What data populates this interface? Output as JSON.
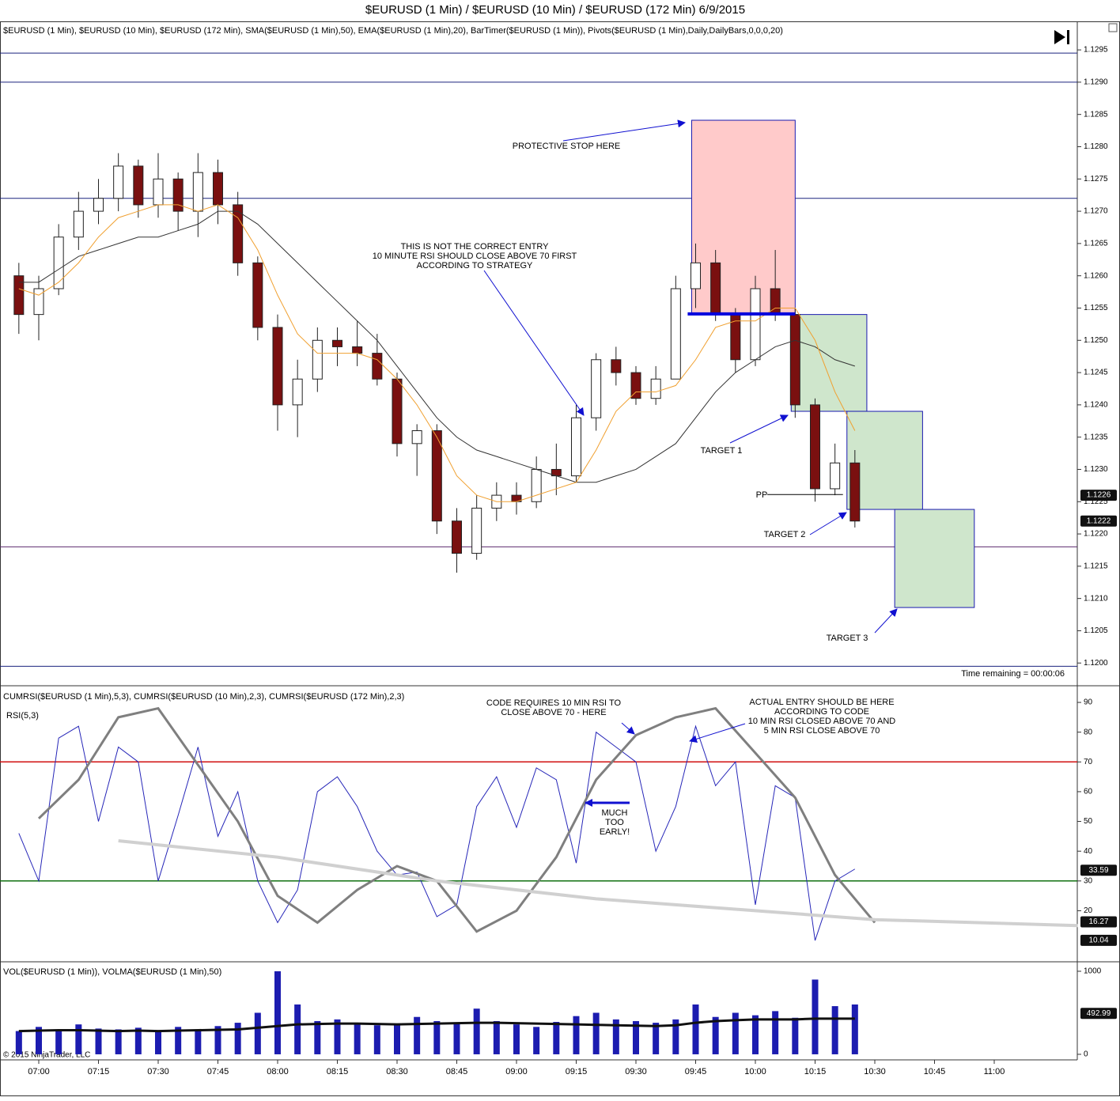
{
  "title": "$EURUSD (1 Min) / $EURUSD (10 Min) / $EURUSD (172 Min)  6/9/2015",
  "copyright": "© 2015 NinjaTrader, LLC",
  "xticks": [
    "07:00",
    "07:15",
    "07:30",
    "07:45",
    "08:00",
    "08:15",
    "08:30",
    "08:45",
    "09:00",
    "09:15",
    "09:30",
    "09:45",
    "10:00",
    "10:15",
    "10:30",
    "10:45",
    "11:00"
  ],
  "chart_data": [
    {
      "type": "candlestick",
      "label": "$EURUSD (1 Min), $EURUSD (10 Min), $EURUSD (172 Min), SMA($EURUSD (1 Min),50), EMA($EURUSD (1 Min),20), BarTimer($EURUSD (1 Min)), Pivots($EURUSD (1 Min),Daily,DailyBars,0,0,0,20)",
      "x": [
        "06:55",
        "07:00",
        "07:05",
        "07:10",
        "07:15",
        "07:20",
        "07:25",
        "07:30",
        "07:35",
        "07:40",
        "07:45",
        "07:50",
        "07:55",
        "08:00",
        "08:05",
        "08:10",
        "08:15",
        "08:20",
        "08:25",
        "08:30",
        "08:35",
        "08:40",
        "08:45",
        "08:50",
        "08:55",
        "09:00",
        "09:05",
        "09:10",
        "09:15",
        "09:20",
        "09:25",
        "09:30",
        "09:35",
        "09:40",
        "09:45",
        "09:50",
        "09:55",
        "10:00",
        "10:05",
        "10:10",
        "10:15",
        "10:20",
        "10:25"
      ],
      "open": [
        1.126,
        1.1254,
        1.1258,
        1.1266,
        1.127,
        1.1272,
        1.1277,
        1.1271,
        1.1275,
        1.127,
        1.1276,
        1.1271,
        1.1262,
        1.1252,
        1.124,
        1.1244,
        1.125,
        1.1249,
        1.1248,
        1.1244,
        1.1234,
        1.1236,
        1.1222,
        1.1217,
        1.1224,
        1.1226,
        1.1225,
        1.123,
        1.1229,
        1.1238,
        1.1247,
        1.1245,
        1.1241,
        1.1244,
        1.1258,
        1.1262,
        1.1254,
        1.1247,
        1.1258,
        1.1254,
        1.124,
        1.1227,
        1.1231
      ],
      "high": [
        1.1262,
        1.126,
        1.1268,
        1.1273,
        1.1275,
        1.1279,
        1.1278,
        1.1279,
        1.1276,
        1.1279,
        1.1278,
        1.1273,
        1.1263,
        1.1254,
        1.1247,
        1.1252,
        1.1252,
        1.1253,
        1.1251,
        1.1245,
        1.1237,
        1.1237,
        1.1224,
        1.1226,
        1.1228,
        1.1228,
        1.1232,
        1.1234,
        1.124,
        1.1248,
        1.1249,
        1.1246,
        1.1246,
        1.126,
        1.1265,
        1.1264,
        1.1255,
        1.126,
        1.1264,
        1.1255,
        1.1241,
        1.1234,
        1.1233
      ],
      "low": [
        1.1251,
        1.125,
        1.1257,
        1.1264,
        1.1268,
        1.127,
        1.1269,
        1.1269,
        1.1267,
        1.1266,
        1.1268,
        1.126,
        1.125,
        1.1236,
        1.1235,
        1.1242,
        1.1246,
        1.1246,
        1.1243,
        1.1232,
        1.1229,
        1.122,
        1.1214,
        1.1216,
        1.1222,
        1.1223,
        1.1224,
        1.1226,
        1.1228,
        1.1236,
        1.1243,
        1.124,
        1.124,
        1.1244,
        1.1255,
        1.1253,
        1.1245,
        1.1246,
        1.1253,
        1.1238,
        1.1225,
        1.1226,
        1.1221
      ],
      "close": [
        1.1254,
        1.1258,
        1.1266,
        1.127,
        1.1272,
        1.1277,
        1.1271,
        1.1275,
        1.127,
        1.1276,
        1.1271,
        1.1262,
        1.1252,
        1.124,
        1.1244,
        1.125,
        1.1249,
        1.1248,
        1.1244,
        1.1234,
        1.1236,
        1.1222,
        1.1217,
        1.1224,
        1.1226,
        1.1225,
        1.123,
        1.1229,
        1.1238,
        1.1247,
        1.1245,
        1.1241,
        1.1244,
        1.1258,
        1.1262,
        1.1254,
        1.1247,
        1.1258,
        1.1254,
        1.124,
        1.1227,
        1.1231,
        1.1222
      ],
      "up_color": "#ffffff",
      "down_color": "#7a1010",
      "series": [
        {
          "color": "#333333",
          "values": [
            1.1259,
            1.1259,
            1.1261,
            1.1263,
            1.1264,
            1.1265,
            1.1266,
            1.1266,
            1.1267,
            1.1268,
            1.127,
            1.127,
            1.1268,
            1.1265,
            1.1262,
            1.1259,
            1.1256,
            1.1253,
            1.125,
            1.1246,
            1.1242,
            1.1238,
            1.1235,
            1.1233,
            1.1232,
            1.1231,
            1.123,
            1.1229,
            1.1228,
            1.1228,
            1.1229,
            1.123,
            1.1232,
            1.1234,
            1.1238,
            1.1242,
            1.1245,
            1.1247,
            1.1249,
            1.125,
            1.1249,
            1.1247,
            1.1246
          ]
        },
        {
          "color": "#f0a030",
          "values": [
            1.1258,
            1.1257,
            1.1259,
            1.1262,
            1.1266,
            1.1269,
            1.127,
            1.1271,
            1.1271,
            1.127,
            1.1271,
            1.1269,
            1.1264,
            1.1257,
            1.1251,
            1.1248,
            1.1248,
            1.1248,
            1.1247,
            1.1244,
            1.124,
            1.1235,
            1.1229,
            1.1226,
            1.1225,
            1.1225,
            1.1226,
            1.1227,
            1.1228,
            1.1233,
            1.1239,
            1.1242,
            1.1242,
            1.1243,
            1.1247,
            1.1252,
            1.1253,
            1.1253,
            1.1255,
            1.1255,
            1.125,
            1.1242,
            1.1236
          ]
        }
      ],
      "hlines": [
        {
          "value": 1.12945,
          "color": "#1a237e"
        },
        {
          "value": 1.129,
          "color": "#1a237e"
        },
        {
          "value": 1.1272,
          "color": "#1a237e"
        },
        {
          "value": 1.1218,
          "color": "#5c2a6e"
        },
        {
          "value": 1.11995,
          "color": "#1a237e"
        }
      ],
      "segments": [
        {
          "x": [
            "09:43",
            "10:10"
          ],
          "value": 1.12541,
          "color": "#0000dd",
          "width": 4
        },
        {
          "x": [
            "10:03",
            "10:22"
          ],
          "value": 1.12261,
          "color": "#000000",
          "width": 1
        }
      ],
      "boxes": [
        {
          "x": [
            "09:44",
            "10:10"
          ],
          "y": [
            1.12841,
            1.12541
          ],
          "color": "#ffcaca"
        },
        {
          "x": [
            "10:09",
            "10:28"
          ],
          "y": [
            1.1254,
            1.1239
          ],
          "color": "#cfe6cc"
        },
        {
          "x": [
            "10:23",
            "10:42"
          ],
          "y": [
            1.1239,
            1.12238
          ],
          "color": "#cfe6cc"
        },
        {
          "x": [
            "10:35",
            "10:55"
          ],
          "y": [
            1.12238,
            1.12086
          ],
          "color": "#cfe6cc"
        }
      ],
      "annotations": [
        "PROTECTIVE STOP HERE",
        "THIS IS NOT THE CORRECT ENTRY",
        "10 MINUTE RSI SHOULD CLOSE ABOVE 70 FIRST",
        "ACCORDING TO STRATEGY",
        "TARGET 1",
        "TARGET 2",
        "TARGET 3",
        "PP",
        "Time remaining = 00:00:06"
      ],
      "markers": [
        1.1226,
        1.1222
      ],
      "ylim": [
        1.11966,
        1.12993
      ],
      "yticks": [
        {
          "value": 1.12,
          "label": "1.1200"
        },
        {
          "value": 1.1205,
          "label": "1.1205"
        },
        {
          "value": 1.121,
          "label": "1.1210"
        },
        {
          "value": 1.1215,
          "label": "1.1215"
        },
        {
          "value": 1.122,
          "label": "1.1220"
        },
        {
          "value": 1.1225,
          "label": "1.1225"
        },
        {
          "value": 1.123,
          "label": "1.1230"
        },
        {
          "value": 1.1235,
          "label": "1.1235"
        },
        {
          "value": 1.124,
          "label": "1.1240"
        },
        {
          "value": 1.1245,
          "label": "1.1245"
        },
        {
          "value": 1.125,
          "label": "1.1250"
        },
        {
          "value": 1.1255,
          "label": "1.1255"
        },
        {
          "value": 1.126,
          "label": "1.1260"
        },
        {
          "value": 1.1265,
          "label": "1.1265"
        },
        {
          "value": 1.127,
          "label": "1.1270"
        },
        {
          "value": 1.1275,
          "label": "1.1275"
        },
        {
          "value": 1.128,
          "label": "1.1280"
        },
        {
          "value": 1.1285,
          "label": "1.1285"
        },
        {
          "value": 1.129,
          "label": "1.1290"
        },
        {
          "value": 1.1295,
          "label": "1.1295"
        }
      ]
    },
    {
      "type": "line",
      "label": "CUMRSI($EURUSD (1 Min),5,3), CUMRSI($EURUSD (10 Min),2,3), CUMRSI($EURUSD (172 Min),2,3)",
      "sublabel": "RSI(5,3)",
      "x": [
        "06:55",
        "07:00",
        "07:05",
        "07:10",
        "07:15",
        "07:20",
        "07:25",
        "07:30",
        "07:35",
        "07:40",
        "07:45",
        "07:50",
        "07:55",
        "08:00",
        "08:05",
        "08:10",
        "08:15",
        "08:20",
        "08:25",
        "08:30",
        "08:35",
        "08:40",
        "08:45",
        "08:50",
        "08:55",
        "09:00",
        "09:05",
        "09:10",
        "09:15",
        "09:20",
        "09:25",
        "09:30",
        "09:35",
        "09:40",
        "09:45",
        "09:50",
        "09:55",
        "10:00",
        "10:05",
        "10:10",
        "10:15",
        "10:20",
        "10:25"
      ],
      "series": [
        {
          "color": "#2626b8",
          "width": 1,
          "values": [
            46,
            30,
            78,
            82,
            50,
            75,
            70,
            30,
            52,
            75,
            45,
            60,
            30,
            16,
            27,
            60,
            65,
            55,
            40,
            32,
            33,
            18,
            22,
            55,
            65,
            48,
            68,
            64,
            36,
            80,
            75,
            70,
            40,
            55,
            82,
            62,
            70,
            22,
            62,
            58,
            10,
            30,
            34
          ]
        },
        {
          "color": "#7f7f7f",
          "width": 3,
          "x": [
            "07:00",
            "07:10",
            "07:20",
            "07:30",
            "07:50",
            "08:00",
            "08:10",
            "08:20",
            "08:30",
            "08:40",
            "08:50",
            "09:00",
            "09:10",
            "09:20",
            "09:30",
            "09:40",
            "09:50",
            "10:00",
            "10:10",
            "10:20",
            "10:30"
          ],
          "values": [
            51,
            64,
            85,
            88,
            50,
            25,
            16,
            27,
            35,
            30,
            13,
            20,
            38,
            64,
            79,
            85,
            88,
            73,
            58,
            32,
            16
          ]
        },
        {
          "color": "#d0d0d0",
          "width": 4,
          "x": [
            "07:20",
            "08:00",
            "08:40",
            "09:20",
            "10:00",
            "10:30",
            "11:21"
          ],
          "values": [
            43.5,
            38,
            30,
            24,
            20,
            17,
            15
          ]
        }
      ],
      "hlines": [
        {
          "value": 70,
          "color": "#d01010"
        },
        {
          "value": 30,
          "color": "#107010"
        }
      ],
      "annotations": [
        "CODE REQUIRES 10 MIN RSI TO",
        "CLOSE ABOVE 70 - HERE",
        "ACTUAL ENTRY SHOULD BE HERE",
        "ACCORDING TO CODE",
        "10 MIN RSI CLOSED ABOVE 70 AND",
        "5 MIN RSI CLOSE ABOVE 70",
        "MUCH",
        "TOO",
        "EARLY!"
      ],
      "markers": [
        33.59,
        16.27,
        10.04
      ],
      "ylim": [
        3.1,
        94.8
      ],
      "yticks": [
        20,
        30,
        40,
        50,
        60,
        70,
        80,
        90
      ]
    },
    {
      "type": "bar",
      "label": "VOL($EURUSD (1 Min)), VOLMA($EURUSD (1 Min),50)",
      "x": [
        "06:55",
        "07:00",
        "07:05",
        "07:10",
        "07:15",
        "07:20",
        "07:25",
        "07:30",
        "07:35",
        "07:40",
        "07:45",
        "07:50",
        "07:55",
        "08:00",
        "08:05",
        "08:10",
        "08:15",
        "08:20",
        "08:25",
        "08:30",
        "08:35",
        "08:40",
        "08:45",
        "08:50",
        "08:55",
        "09:00",
        "09:05",
        "09:10",
        "09:15",
        "09:20",
        "09:25",
        "09:30",
        "09:35",
        "09:40",
        "09:45",
        "09:50",
        "09:55",
        "10:00",
        "10:05",
        "10:10",
        "10:15",
        "10:20",
        "10:25"
      ],
      "values": [
        280,
        330,
        300,
        360,
        310,
        300,
        320,
        280,
        330,
        300,
        340,
        380,
        500,
        1000,
        600,
        400,
        420,
        380,
        350,
        360,
        450,
        400,
        380,
        550,
        400,
        360,
        330,
        390,
        460,
        500,
        420,
        400,
        380,
        420,
        600,
        450,
        500,
        470,
        520,
        440,
        900,
        580,
        600
      ],
      "color": "#1c1cb0",
      "series": [
        {
          "color": "#111111",
          "width": 3,
          "values": [
            280,
            285,
            290,
            290,
            285,
            280,
            285,
            280,
            285,
            290,
            295,
            300,
            320,
            340,
            360,
            365,
            370,
            370,
            365,
            360,
            365,
            370,
            375,
            380,
            380,
            375,
            370,
            365,
            360,
            355,
            350,
            345,
            340,
            350,
            380,
            400,
            410,
            420,
            420,
            420,
            430,
            430,
            430
          ]
        }
      ],
      "markers": [
        492.99
      ],
      "ylim": [
        -67,
        1095
      ],
      "yticks": [
        0,
        1000
      ]
    }
  ]
}
